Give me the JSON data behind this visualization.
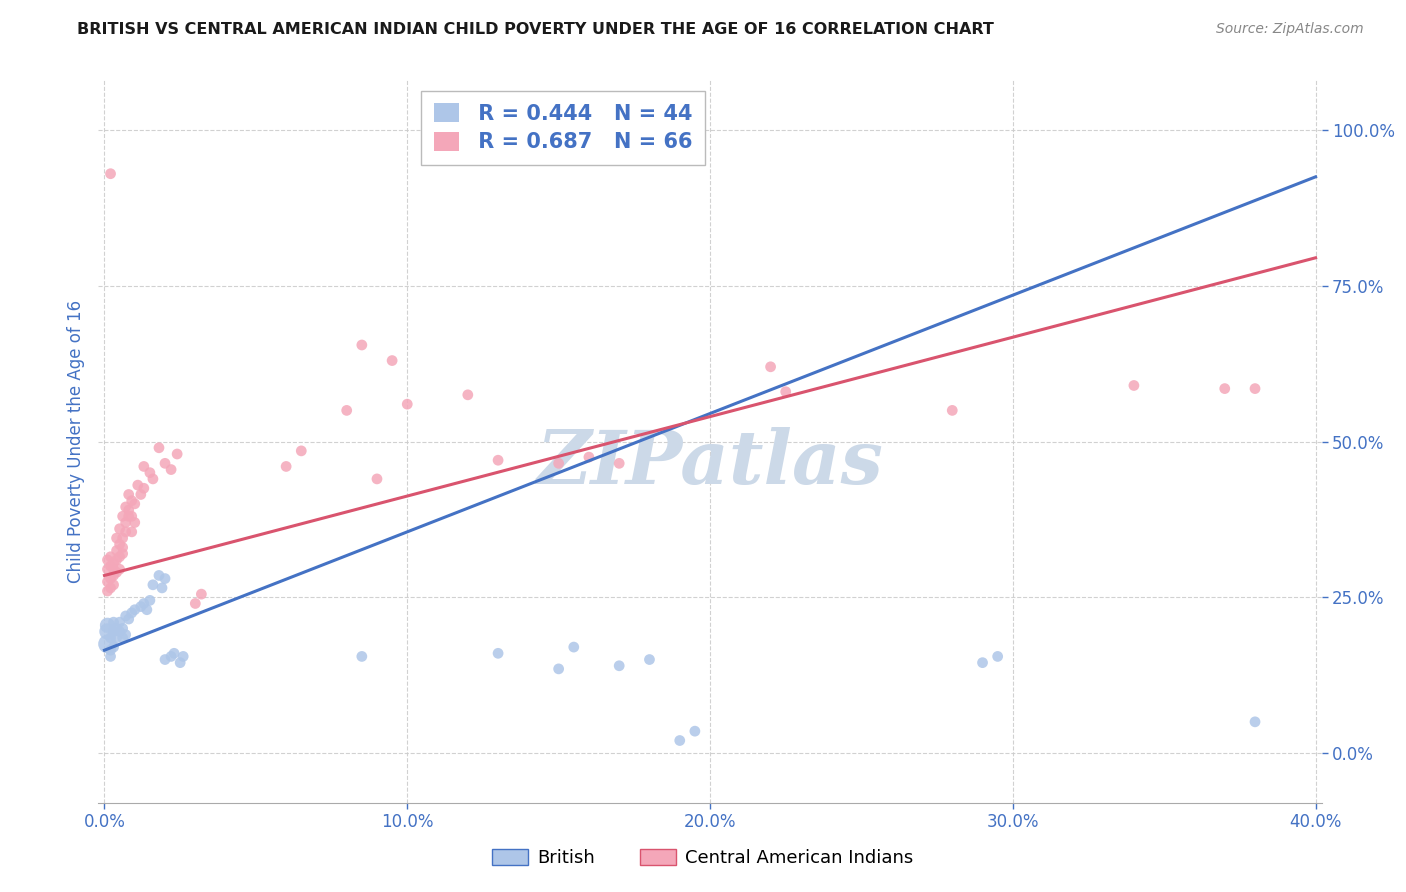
{
  "title": "BRITISH VS CENTRAL AMERICAN INDIAN CHILD POVERTY UNDER THE AGE OF 16 CORRELATION CHART",
  "source": "Source: ZipAtlas.com",
  "ylabel": "Child Poverty Under the Age of 16",
  "xlabel_vals": [
    0.0,
    0.1,
    0.2,
    0.3,
    0.4
  ],
  "ylabel_vals": [
    0.0,
    0.25,
    0.5,
    0.75,
    1.0
  ],
  "xlim": [
    -0.002,
    0.402
  ],
  "ylim": [
    -0.08,
    1.08
  ],
  "british_R": 0.444,
  "british_N": 44,
  "cai_R": 0.687,
  "cai_N": 66,
  "british_color": "#aec6e8",
  "british_line_color": "#4472c4",
  "cai_color": "#f4a7b9",
  "cai_line_color": "#d9546e",
  "watermark": "ZIPatlas",
  "watermark_color": "#ccd9e8",
  "grid_color": "#cccccc",
  "tick_color": "#4472c4",
  "legend_british_label": "British",
  "legend_cai_label": "Central American Indians",
  "british_line": [
    0.0,
    0.165,
    0.4,
    0.925
  ],
  "cai_line": [
    0.0,
    0.285,
    0.4,
    0.795
  ],
  "british_scatter": [
    [
      0.001,
      0.175
    ],
    [
      0.001,
      0.195
    ],
    [
      0.001,
      0.205
    ],
    [
      0.002,
      0.185
    ],
    [
      0.002,
      0.165
    ],
    [
      0.002,
      0.155
    ],
    [
      0.003,
      0.195
    ],
    [
      0.003,
      0.21
    ],
    [
      0.003,
      0.17
    ],
    [
      0.004,
      0.2
    ],
    [
      0.004,
      0.185
    ],
    [
      0.005,
      0.195
    ],
    [
      0.005,
      0.21
    ],
    [
      0.006,
      0.185
    ],
    [
      0.006,
      0.2
    ],
    [
      0.007,
      0.22
    ],
    [
      0.007,
      0.19
    ],
    [
      0.008,
      0.215
    ],
    [
      0.009,
      0.225
    ],
    [
      0.01,
      0.23
    ],
    [
      0.012,
      0.235
    ],
    [
      0.013,
      0.24
    ],
    [
      0.014,
      0.23
    ],
    [
      0.015,
      0.245
    ],
    [
      0.016,
      0.27
    ],
    [
      0.018,
      0.285
    ],
    [
      0.019,
      0.265
    ],
    [
      0.02,
      0.28
    ],
    [
      0.02,
      0.15
    ],
    [
      0.022,
      0.155
    ],
    [
      0.023,
      0.16
    ],
    [
      0.025,
      0.145
    ],
    [
      0.026,
      0.155
    ],
    [
      0.085,
      0.155
    ],
    [
      0.13,
      0.16
    ],
    [
      0.15,
      0.135
    ],
    [
      0.155,
      0.17
    ],
    [
      0.17,
      0.14
    ],
    [
      0.18,
      0.15
    ],
    [
      0.19,
      0.02
    ],
    [
      0.195,
      0.035
    ],
    [
      0.29,
      0.145
    ],
    [
      0.295,
      0.155
    ],
    [
      0.38,
      0.05
    ]
  ],
  "cai_scatter": [
    [
      0.001,
      0.275
    ],
    [
      0.001,
      0.295
    ],
    [
      0.001,
      0.31
    ],
    [
      0.001,
      0.26
    ],
    [
      0.002,
      0.28
    ],
    [
      0.002,
      0.3
    ],
    [
      0.002,
      0.315
    ],
    [
      0.002,
      0.265
    ],
    [
      0.003,
      0.285
    ],
    [
      0.003,
      0.305
    ],
    [
      0.003,
      0.27
    ],
    [
      0.003,
      0.295
    ],
    [
      0.004,
      0.31
    ],
    [
      0.004,
      0.29
    ],
    [
      0.004,
      0.345
    ],
    [
      0.004,
      0.325
    ],
    [
      0.005,
      0.335
    ],
    [
      0.005,
      0.315
    ],
    [
      0.005,
      0.36
    ],
    [
      0.005,
      0.295
    ],
    [
      0.006,
      0.345
    ],
    [
      0.006,
      0.33
    ],
    [
      0.006,
      0.38
    ],
    [
      0.006,
      0.32
    ],
    [
      0.007,
      0.37
    ],
    [
      0.007,
      0.395
    ],
    [
      0.007,
      0.355
    ],
    [
      0.008,
      0.39
    ],
    [
      0.008,
      0.415
    ],
    [
      0.008,
      0.38
    ],
    [
      0.009,
      0.38
    ],
    [
      0.009,
      0.405
    ],
    [
      0.009,
      0.355
    ],
    [
      0.01,
      0.4
    ],
    [
      0.01,
      0.37
    ],
    [
      0.011,
      0.43
    ],
    [
      0.012,
      0.415
    ],
    [
      0.013,
      0.425
    ],
    [
      0.013,
      0.46
    ],
    [
      0.015,
      0.45
    ],
    [
      0.016,
      0.44
    ],
    [
      0.018,
      0.49
    ],
    [
      0.02,
      0.465
    ],
    [
      0.022,
      0.455
    ],
    [
      0.024,
      0.48
    ],
    [
      0.03,
      0.24
    ],
    [
      0.032,
      0.255
    ],
    [
      0.06,
      0.46
    ],
    [
      0.065,
      0.485
    ],
    [
      0.08,
      0.55
    ],
    [
      0.09,
      0.44
    ],
    [
      0.1,
      0.56
    ],
    [
      0.12,
      0.575
    ],
    [
      0.002,
      0.93
    ],
    [
      0.085,
      0.655
    ],
    [
      0.095,
      0.63
    ],
    [
      0.13,
      0.47
    ],
    [
      0.15,
      0.465
    ],
    [
      0.16,
      0.475
    ],
    [
      0.17,
      0.465
    ],
    [
      0.22,
      0.62
    ],
    [
      0.225,
      0.58
    ],
    [
      0.28,
      0.55
    ],
    [
      0.34,
      0.59
    ],
    [
      0.37,
      0.585
    ],
    [
      0.38,
      0.585
    ]
  ]
}
